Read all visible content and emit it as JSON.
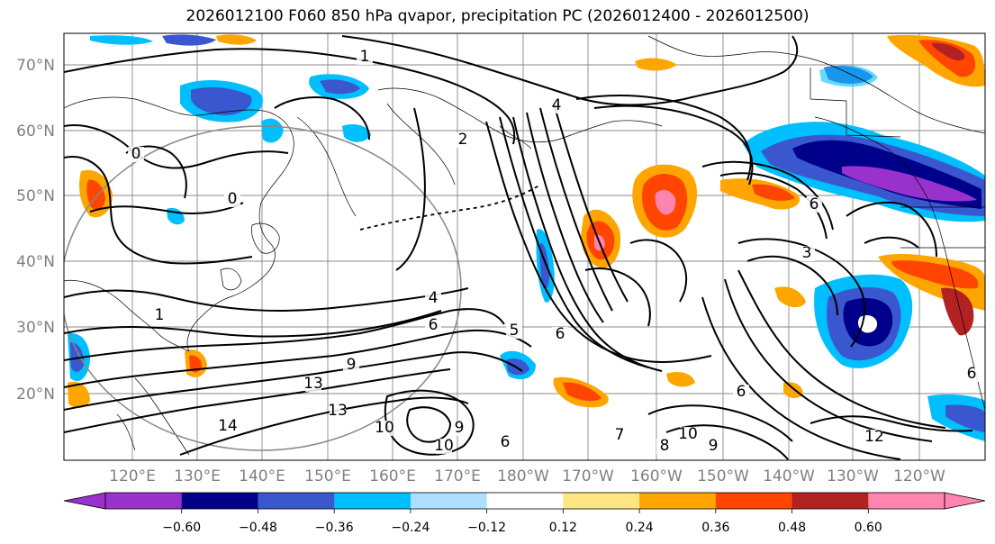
{
  "title": "2026012100 F060 850 hPa qvapor, precipitation PC (2026012400 - 2026012500)",
  "lat_labels": [
    "70°N",
    "60°N",
    "50°N",
    "40°N",
    "30°N",
    "20°N"
  ],
  "lon_labels": [
    "120°E",
    "130°E",
    "140°E",
    "150°E",
    "160°E",
    "170°E",
    "180°W",
    "170°W",
    "160°W",
    "150°W",
    "140°W",
    "130°W",
    "120°W"
  ],
  "colorbar": {
    "colors": [
      "#9932CC",
      "#00008B",
      "#3A57CF",
      "#00BFFF",
      "#ADDFFF",
      "#FFFFFF",
      "#FFE680",
      "#FFA500",
      "#FF4500",
      "#B22222",
      "#FF85B0"
    ],
    "tick_labels": [
      "−0.60",
      "−0.48",
      "−0.36",
      "−0.24",
      "−0.12",
      "0.12",
      "0.24",
      "0.36",
      "0.48",
      "0.60"
    ]
  },
  "contour_labels": [
    {
      "text": "1"
    },
    {
      "text": "4"
    },
    {
      "text": "2"
    },
    {
      "text": "0"
    },
    {
      "text": "0"
    },
    {
      "text": "4"
    },
    {
      "text": "6"
    },
    {
      "text": "1"
    },
    {
      "text": "9"
    },
    {
      "text": "13"
    },
    {
      "text": "14"
    },
    {
      "text": "13"
    },
    {
      "text": "10"
    },
    {
      "text": "9"
    },
    {
      "text": "10"
    },
    {
      "text": "6"
    },
    {
      "text": "7"
    },
    {
      "text": "5"
    },
    {
      "text": "6"
    },
    {
      "text": "3"
    },
    {
      "text": "6"
    },
    {
      "text": "9"
    },
    {
      "text": "10"
    },
    {
      "text": "12"
    },
    {
      "text": "8"
    },
    {
      "text": "6"
    },
    {
      "text": "6"
    }
  ]
}
